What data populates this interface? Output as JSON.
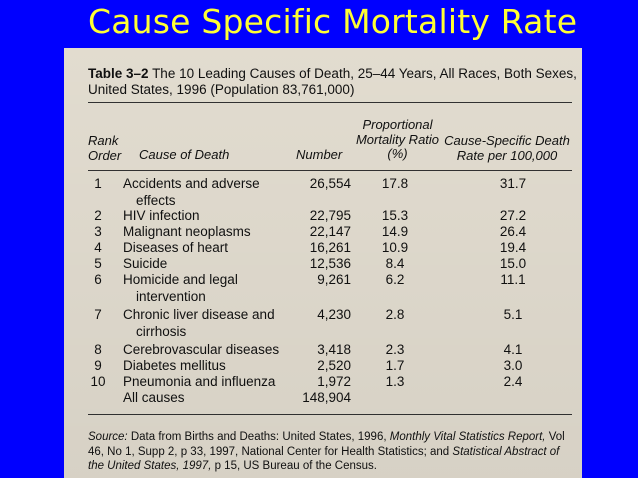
{
  "slide_title": "Cause Specific Mortality Rate",
  "table": {
    "label": "Table 3–2",
    "caption": "The 10 Leading Causes of Death, 25–44 Years, All Races, Both Sexes, United States, 1996 (Population 83,761,000)",
    "headers": {
      "rank_line1": "Rank",
      "rank_line2": "Order",
      "cause": "Cause of Death",
      "number": "Number",
      "pmr_line1": "Proportional",
      "pmr_line2": "Mortality Ratio",
      "pmr_line3": "(%)",
      "rate_line1": "Cause-Specific Death",
      "rate_line2": "Rate per 100,000"
    },
    "rows": [
      {
        "rank": "1",
        "cause": "Accidents and adverse",
        "cause2": "effects",
        "number": "26,554",
        "pmr": "17.8",
        "rate": "31.7"
      },
      {
        "rank": "2",
        "cause": "HIV infection",
        "number": "22,795",
        "pmr": "15.3",
        "rate": "27.2"
      },
      {
        "rank": "3",
        "cause": "Malignant neoplasms",
        "number": "22,147",
        "pmr": "14.9",
        "rate": "26.4"
      },
      {
        "rank": "4",
        "cause": "Diseases of heart",
        "number": "16,261",
        "pmr": "10.9",
        "rate": "19.4"
      },
      {
        "rank": "5",
        "cause": "Suicide",
        "number": "12,536",
        "pmr": "8.4",
        "rate": "15.0"
      },
      {
        "rank": "6",
        "cause": "Homicide and legal",
        "cause2": "intervention",
        "number": "9,261",
        "pmr": "6.2",
        "rate": "11.1"
      },
      {
        "rank": "7",
        "cause": "Chronic liver disease and",
        "cause2": "cirrhosis",
        "number": "4,230",
        "pmr": "2.8",
        "rate": "5.1"
      },
      {
        "rank": "8",
        "cause": "Cerebrovascular diseases",
        "number": "3,418",
        "pmr": "2.3",
        "rate": "4.1"
      },
      {
        "rank": "9",
        "cause": "Diabetes mellitus",
        "number": "2,520",
        "pmr": "1.7",
        "rate": "3.0"
      },
      {
        "rank": "10",
        "cause": "Pneumonia and influenza",
        "number": "1,972",
        "pmr": "1.3",
        "rate": "2.4"
      },
      {
        "rank": "",
        "cause": "All causes",
        "number": "148,904",
        "pmr": "",
        "rate": ""
      }
    ],
    "source_label": "Source:",
    "source_text_1": "Data from Births and Deaths: United States, 1996,",
    "source_italic_1": "Monthly Vital Statistics Report,",
    "source_text_2": "Vol 46, No 1, Supp 2, p 33, 1997, National Center for Health Statistics; and",
    "source_italic_2": "Statistical Abstract of the United States, 1997,",
    "source_text_3": "p 15, US Bureau of the Census."
  }
}
